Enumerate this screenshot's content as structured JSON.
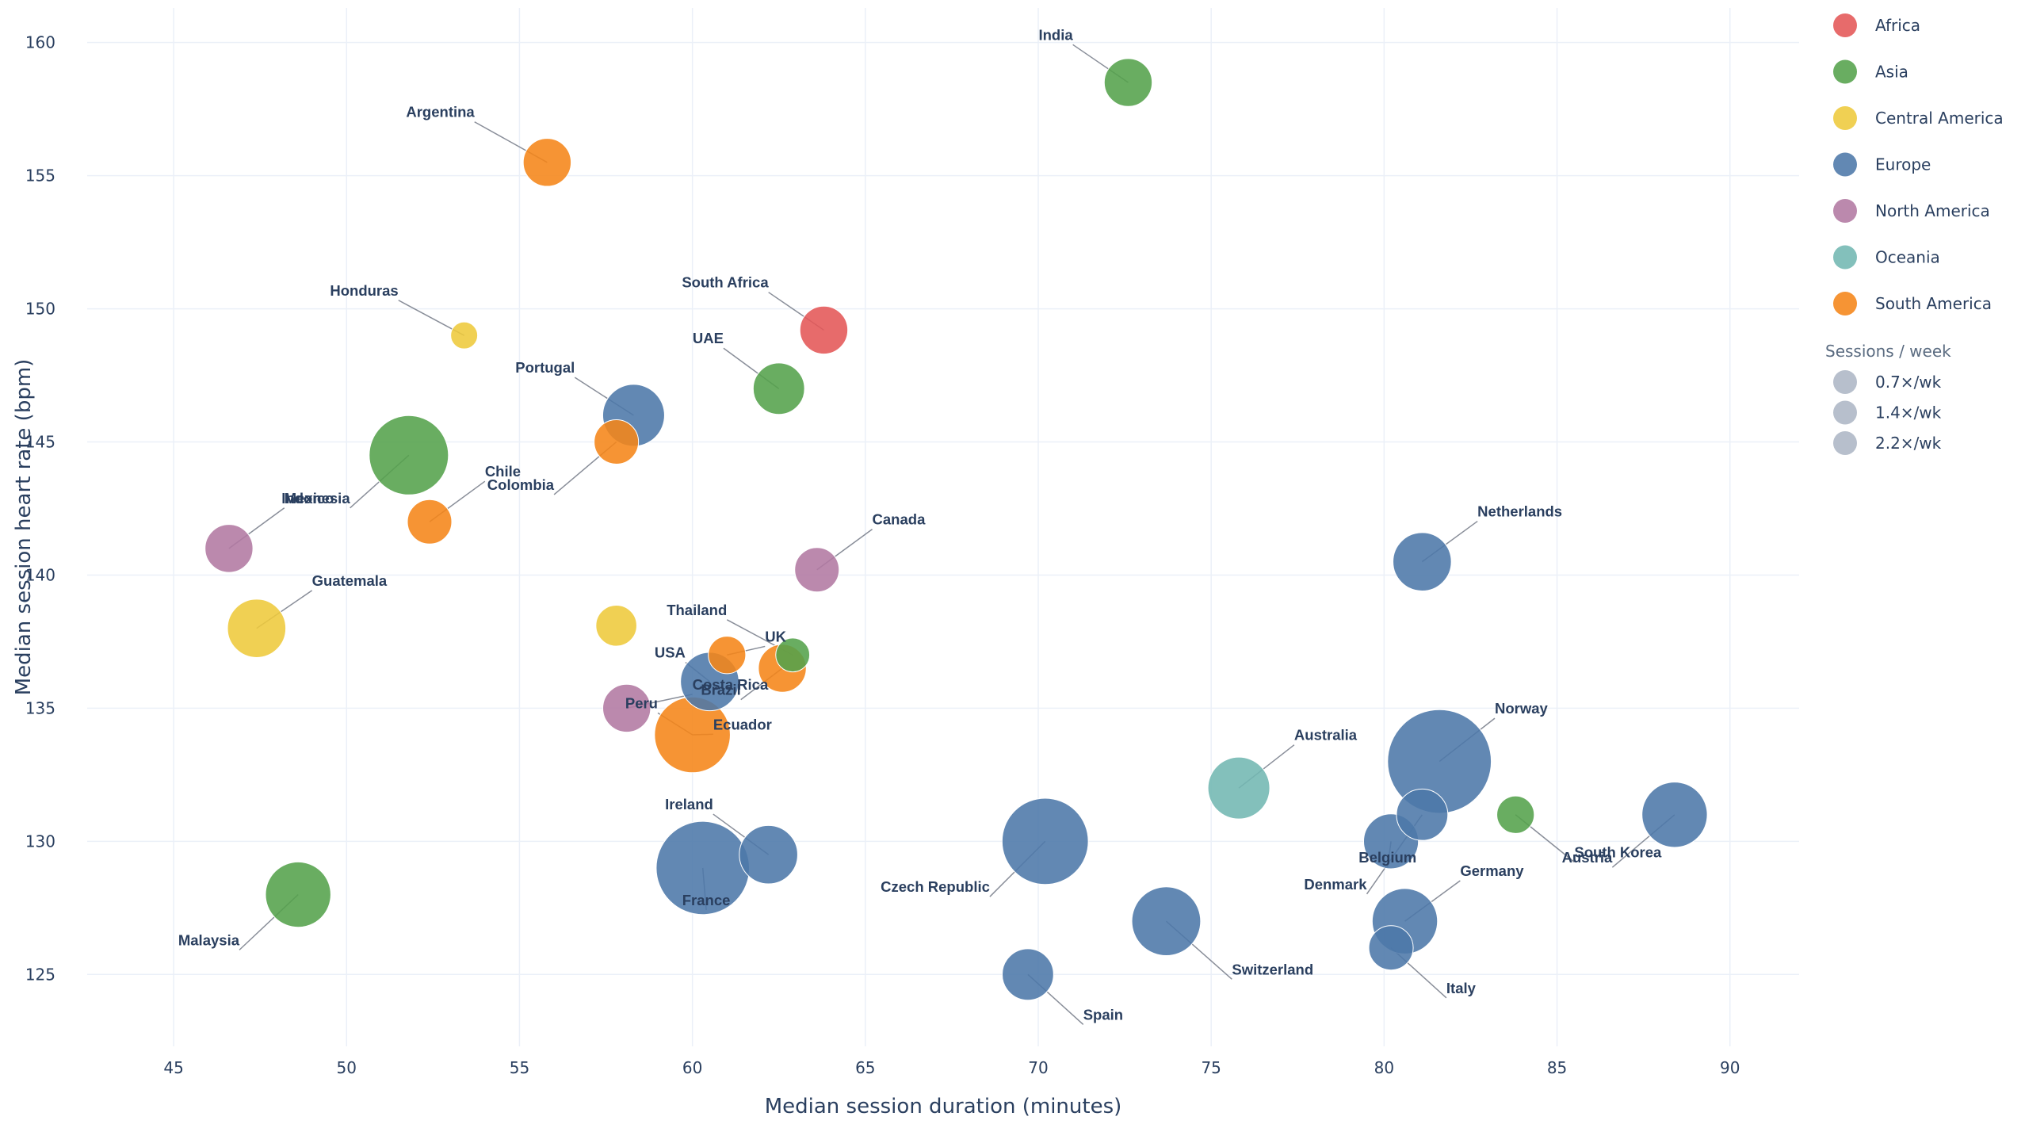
{
  "chart_data": {
    "type": "scatter",
    "title": "",
    "xlabel": "Median session duration (minutes)",
    "ylabel": "Median session heart rate (bpm)",
    "xlim": [
      42.5,
      92
    ],
    "ylim": [
      122.3,
      161.3
    ],
    "xticks": [
      45,
      50,
      55,
      60,
      65,
      70,
      75,
      80,
      85,
      90
    ],
    "yticks": [
      125,
      130,
      135,
      140,
      145,
      150,
      155,
      160
    ],
    "grid": true,
    "legend_position": "top-right",
    "legend_title_size": "Sessions / week",
    "size_legend": [
      "0.7×/wk",
      "1.4×/wk",
      "2.2×/wk"
    ],
    "regions": [
      {
        "name": "Africa",
        "color": "#e45756"
      },
      {
        "name": "Asia",
        "color": "#54a24b"
      },
      {
        "name": "Central America",
        "color": "#eeca3b"
      },
      {
        "name": "Europe",
        "color": "#4c78a8"
      },
      {
        "name": "North America",
        "color": "#b279a2"
      },
      {
        "name": "Oceania",
        "color": "#72b7b2"
      },
      {
        "name": "South America",
        "color": "#f58518"
      }
    ],
    "points": [
      {
        "label": "India",
        "region": "Asia",
        "x": 72.6,
        "y": 158.5,
        "sessions": 1.2,
        "lx": 71.0,
        "ly": 160.1
      },
      {
        "label": "Argentina",
        "region": "South America",
        "x": 55.8,
        "y": 155.5,
        "sessions": 1.2,
        "lx": 53.7,
        "ly": 157.2
      },
      {
        "label": "South Africa",
        "region": "Africa",
        "x": 63.8,
        "y": 149.2,
        "sessions": 1.2,
        "lx": 62.2,
        "ly": 150.8
      },
      {
        "label": "Honduras",
        "region": "Central America",
        "x": 53.4,
        "y": 149.0,
        "sessions": 0.6,
        "lx": 51.5,
        "ly": 150.5
      },
      {
        "label": "UAE",
        "region": "Asia",
        "x": 62.5,
        "y": 147.0,
        "sessions": 1.3,
        "lx": 60.9,
        "ly": 148.7
      },
      {
        "label": "Portugal",
        "region": "Europe",
        "x": 58.3,
        "y": 146.0,
        "sessions": 1.6,
        "lx": 56.6,
        "ly": 147.6
      },
      {
        "label": "Colombia",
        "region": "South America",
        "x": 57.8,
        "y": 145.0,
        "sessions": 1.1,
        "lx": 56.0,
        "ly": 143.2
      },
      {
        "label": "Indonesia",
        "region": "Asia",
        "x": 51.8,
        "y": 144.5,
        "sessions": 2.1,
        "lx": 50.1,
        "ly": 142.7
      },
      {
        "label": "Chile",
        "region": "South America",
        "x": 52.4,
        "y": 142.0,
        "sessions": 1.1,
        "lx": 54.0,
        "ly": 143.7
      },
      {
        "label": "Mexico",
        "region": "North America",
        "x": 46.6,
        "y": 141.0,
        "sessions": 1.2,
        "lx": 48.2,
        "ly": 142.7
      },
      {
        "label": "Canada",
        "region": "North America",
        "x": 63.6,
        "y": 140.2,
        "sessions": 1.1,
        "lx": 65.2,
        "ly": 141.9
      },
      {
        "label": "Netherlands",
        "region": "Europe",
        "x": 81.1,
        "y": 140.5,
        "sessions": 1.5,
        "lx": 82.7,
        "ly": 142.2
      },
      {
        "label": "Guatemala",
        "region": "Central America",
        "x": 47.4,
        "y": 138.0,
        "sessions": 1.5,
        "lx": 49.0,
        "ly": 139.6
      },
      {
        "label": "Central America",
        "region": "Central America",
        "x": 57.8,
        "y": 138.1,
        "sessions": 1.0,
        "lx": null,
        "ly": null
      },
      {
        "label": "Thailand",
        "region": "Asia",
        "x": 62.9,
        "y": 137.0,
        "sessions": 0.8,
        "lx": 61.0,
        "ly": 138.5
      },
      {
        "label": "UK",
        "region": "South America",
        "x": 61.0,
        "y": 137.0,
        "sessions": 0.9,
        "lx": 62.1,
        "ly": 137.5
      },
      {
        "label": "Brazil",
        "region": "South America",
        "x": 62.6,
        "y": 136.5,
        "sessions": 1.2,
        "lx": 61.4,
        "ly": 135.5
      },
      {
        "label": "USA",
        "region": "Europe",
        "x": 60.5,
        "y": 136.0,
        "sessions": 1.5,
        "lx": 59.8,
        "ly": 136.9
      },
      {
        "label": "Costa Rica",
        "region": "North America",
        "x": 58.1,
        "y": 135.0,
        "sessions": 1.2,
        "lx": 60.0,
        "ly": 135.7
      },
      {
        "label": "Peru",
        "region": "South America",
        "x": 60.0,
        "y": 134.0,
        "sessions": 2.0,
        "lx": 59.0,
        "ly": 135.0
      },
      {
        "label": "Ecuador",
        "region": "South America",
        "x": 60.0,
        "y": 134.0,
        "sessions": 0.0,
        "lx": 60.6,
        "ly": 134.2
      },
      {
        "label": "Norway",
        "region": "Europe",
        "x": 81.6,
        "y": 133.0,
        "sessions": 2.8,
        "lx": 83.2,
        "ly": 134.8
      },
      {
        "label": "Australia",
        "region": "Oceania",
        "x": 75.8,
        "y": 132.0,
        "sessions": 1.6,
        "lx": 77.4,
        "ly": 133.8
      },
      {
        "label": "South Korea",
        "region": "Asia",
        "x": 83.8,
        "y": 131.0,
        "sessions": 0.9,
        "lx": 85.5,
        "ly": 129.4
      },
      {
        "label": "Austria",
        "region": "Europe",
        "x": 88.4,
        "y": 131.0,
        "sessions": 1.7,
        "lx": 86.6,
        "ly": 129.2
      },
      {
        "label": "Ireland",
        "region": "Europe",
        "x": 62.2,
        "y": 129.5,
        "sessions": 1.5,
        "lx": 60.6,
        "ly": 131.2
      },
      {
        "label": "Czech Republic",
        "region": "Europe",
        "x": 70.2,
        "y": 130.0,
        "sessions": 2.3,
        "lx": 68.6,
        "ly": 128.1
      },
      {
        "label": "France",
        "region": "Europe",
        "x": 60.3,
        "y": 129.0,
        "sessions": 2.5,
        "lx": 60.4,
        "ly": 127.6
      },
      {
        "label": "Belgium",
        "region": "Europe",
        "x": 80.2,
        "y": 130.0,
        "sessions": 1.4,
        "lx": 80.1,
        "ly": 129.2
      },
      {
        "label": "Denmark",
        "region": "Europe",
        "x": 81.1,
        "y": 131.0,
        "sessions": 1.3,
        "lx": 79.5,
        "ly": 128.2
      },
      {
        "label": "Germany",
        "region": "Europe",
        "x": 80.6,
        "y": 127.0,
        "sessions": 1.7,
        "lx": 82.2,
        "ly": 128.7
      },
      {
        "label": "Switzerland",
        "region": "Europe",
        "x": 73.7,
        "y": 127.0,
        "sessions": 1.8,
        "lx": 75.6,
        "ly": 125.0
      },
      {
        "label": "Italy",
        "region": "Europe",
        "x": 80.2,
        "y": 126.0,
        "sessions": 1.1,
        "lx": 81.8,
        "ly": 124.3
      },
      {
        "label": "Spain",
        "region": "Europe",
        "x": 69.7,
        "y": 125.0,
        "sessions": 1.3,
        "lx": 71.3,
        "ly": 123.3
      },
      {
        "label": "Malaysia",
        "region": "Asia",
        "x": 48.6,
        "y": 128.0,
        "sessions": 1.7,
        "lx": 46.9,
        "ly": 126.1
      }
    ]
  }
}
